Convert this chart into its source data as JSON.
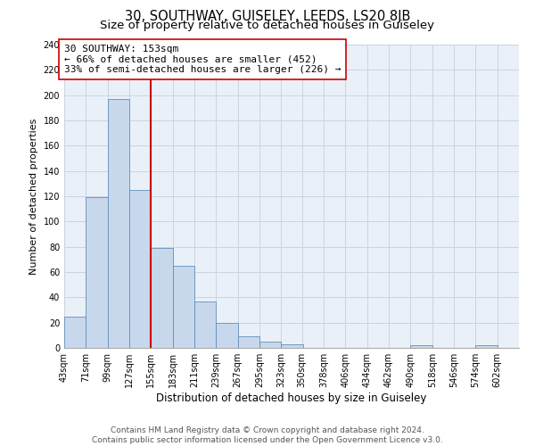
{
  "title": "30, SOUTHWAY, GUISELEY, LEEDS, LS20 8JB",
  "subtitle": "Size of property relative to detached houses in Guiseley",
  "xlabel": "Distribution of detached houses by size in Guiseley",
  "ylabel": "Number of detached properties",
  "bin_labels": [
    "43sqm",
    "71sqm",
    "99sqm",
    "127sqm",
    "155sqm",
    "183sqm",
    "211sqm",
    "239sqm",
    "267sqm",
    "295sqm",
    "323sqm",
    "350sqm",
    "378sqm",
    "406sqm",
    "434sqm",
    "462sqm",
    "490sqm",
    "518sqm",
    "546sqm",
    "574sqm",
    "602sqm"
  ],
  "bin_edges": [
    43,
    71,
    99,
    127,
    155,
    183,
    211,
    239,
    267,
    295,
    323,
    350,
    378,
    406,
    434,
    462,
    490,
    518,
    546,
    574,
    602
  ],
  "bar_heights": [
    25,
    119,
    197,
    125,
    79,
    65,
    37,
    20,
    9,
    5,
    3,
    0,
    0,
    0,
    0,
    0,
    2,
    0,
    0,
    2,
    0
  ],
  "bar_color": "#c8d8ec",
  "bar_edgecolor": "#6090b8",
  "vline_x": 155,
  "vline_color": "#cc0000",
  "annotation_text": "30 SOUTHWAY: 153sqm\n← 66% of detached houses are smaller (452)\n33% of semi-detached houses are larger (226) →",
  "annotation_box_edgecolor": "#cc0000",
  "annotation_box_facecolor": "white",
  "ylim": [
    0,
    240
  ],
  "yticks": [
    0,
    20,
    40,
    60,
    80,
    100,
    120,
    140,
    160,
    180,
    200,
    220,
    240
  ],
  "grid_color": "#c8d4e4",
  "background_color": "#eaf0f8",
  "footer_text": "Contains HM Land Registry data © Crown copyright and database right 2024.\nContains public sector information licensed under the Open Government Licence v3.0.",
  "title_fontsize": 10.5,
  "subtitle_fontsize": 9.5,
  "xlabel_fontsize": 8.5,
  "ylabel_fontsize": 8,
  "tick_fontsize": 7,
  "annotation_fontsize": 8,
  "footer_fontsize": 6.5
}
